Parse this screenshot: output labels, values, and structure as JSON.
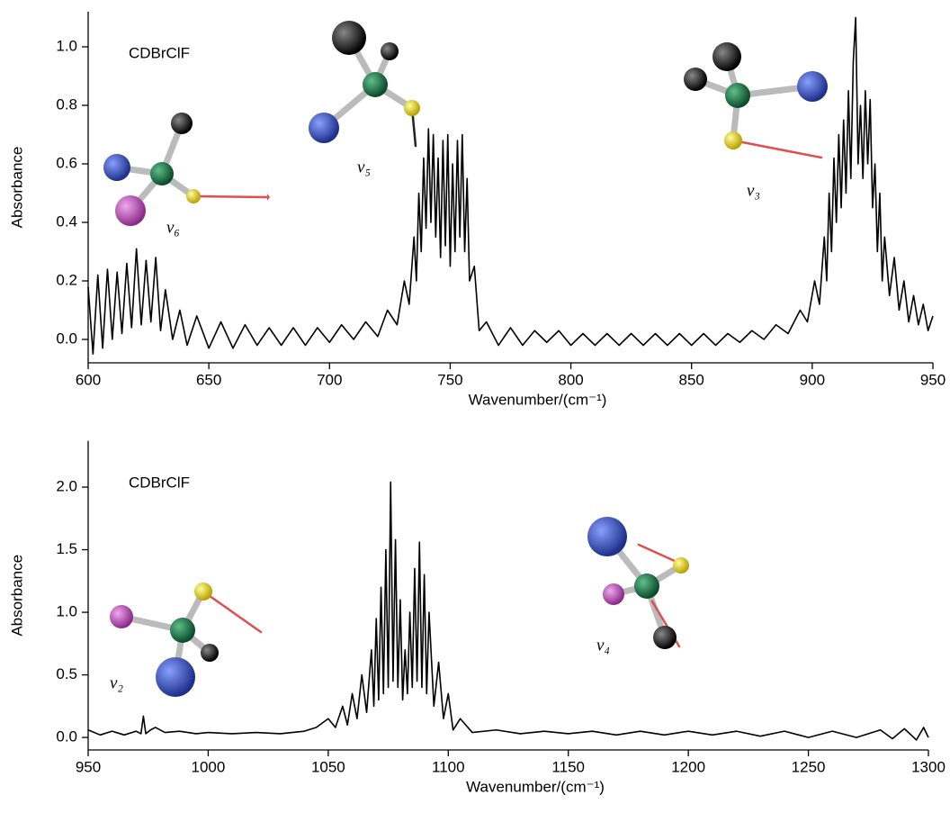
{
  "chart_data": [
    {
      "type": "line",
      "x_label": "Wavenumber/(cm⁻¹)",
      "y_label": "Absorbance",
      "annotations": [
        "CDBrClF",
        "ν₆",
        "ν₅",
        "ν₃"
      ],
      "xlim": [
        600,
        950
      ],
      "xticks": [
        600,
        650,
        700,
        750,
        800,
        850,
        900,
        950
      ],
      "ylim": [
        -0.08,
        1.12
      ],
      "yticks": [
        {
          "value": 0,
          "label": "0.0"
        },
        {
          "value": 0.2,
          "label": "0.2"
        },
        {
          "value": 0.4,
          "label": "0.4"
        },
        {
          "value": 0.6,
          "label": "0.6"
        },
        {
          "value": 0.8,
          "label": "0.8"
        },
        {
          "value": 1,
          "label": "1.0"
        }
      ],
      "color": "#000000",
      "x": [
        600,
        602,
        604,
        606,
        608,
        610,
        612,
        614,
        616,
        618,
        620,
        622,
        624,
        626,
        628,
        630,
        632,
        635,
        638,
        641,
        645,
        650,
        655,
        660,
        665,
        670,
        675,
        680,
        685,
        690,
        695,
        700,
        705,
        710,
        715,
        720,
        724,
        728,
        731,
        733,
        735,
        736,
        737,
        738,
        739,
        740,
        741,
        742,
        743,
        744,
        745,
        746,
        747,
        748,
        749,
        750,
        751,
        752,
        753,
        754,
        755,
        756,
        757,
        758,
        760,
        762,
        765,
        770,
        775,
        780,
        785,
        790,
        795,
        800,
        805,
        810,
        815,
        820,
        825,
        830,
        835,
        840,
        845,
        850,
        855,
        860,
        865,
        870,
        875,
        880,
        885,
        890,
        895,
        898,
        901,
        903,
        905,
        906,
        907,
        908,
        909,
        910,
        911,
        912,
        913,
        914,
        915,
        916,
        917,
        918,
        919,
        920,
        921,
        922,
        923,
        924,
        925,
        926,
        927,
        928,
        929,
        930,
        932,
        934,
        936,
        938,
        940,
        942,
        944,
        946,
        948,
        950
      ],
      "values": [
        0.18,
        -0.05,
        0.22,
        -0.03,
        0.24,
        0,
        0.23,
        0.02,
        0.26,
        0.04,
        0.31,
        0.05,
        0.27,
        0.06,
        0.28,
        0.03,
        0.17,
        0,
        0.1,
        -0.02,
        0.08,
        -0.03,
        0.06,
        -0.03,
        0.05,
        -0.02,
        0.04,
        -0.02,
        0.04,
        -0.02,
        0.04,
        -0.01,
        0.05,
        0,
        0.06,
        0.01,
        0.1,
        0.05,
        0.2,
        0.12,
        0.35,
        0.2,
        0.5,
        0.3,
        0.62,
        0.38,
        0.72,
        0.4,
        0.7,
        0.35,
        0.62,
        0.28,
        0.68,
        0.32,
        0.7,
        0.25,
        0.6,
        0.3,
        0.68,
        0.35,
        0.7,
        0.3,
        0.55,
        0.2,
        0.25,
        0.03,
        0.06,
        -0.02,
        0.04,
        -0.02,
        0.03,
        -0.01,
        0.03,
        -0.02,
        0.02,
        -0.02,
        0.02,
        -0.02,
        0.02,
        -0.02,
        0.02,
        -0.02,
        0.02,
        -0.02,
        0.02,
        -0.02,
        0.02,
        -0.01,
        0.03,
        0,
        0.05,
        0.02,
        0.1,
        0.06,
        0.2,
        0.12,
        0.35,
        0.2,
        0.5,
        0.3,
        0.62,
        0.4,
        0.7,
        0.45,
        0.75,
        0.5,
        0.85,
        0.55,
        0.95,
        1.1,
        0.6,
        0.8,
        0.55,
        0.85,
        0.6,
        0.82,
        0.45,
        0.6,
        0.3,
        0.5,
        0.2,
        0.35,
        0.15,
        0.28,
        0.1,
        0.2,
        0.06,
        0.15,
        0.05,
        0.12,
        0.03,
        0.08
      ]
    },
    {
      "type": "line",
      "x_label": "Wavenumber/(cm⁻¹)",
      "y_label": "Absorbance",
      "annotations": [
        "CDBrClF",
        "ν₂",
        "ν₄"
      ],
      "xlim": [
        950,
        1300
      ],
      "xticks": [
        950,
        1000,
        1050,
        1100,
        1150,
        1200,
        1250,
        1300
      ],
      "ylim": [
        -0.1,
        2.37
      ],
      "yticks": [
        {
          "value": 0,
          "label": "0.0"
        },
        {
          "value": 0.5,
          "label": "0.5"
        },
        {
          "value": 1,
          "label": "1.0"
        },
        {
          "value": 1.5,
          "label": "1.5"
        },
        {
          "value": 2,
          "label": "2.0"
        }
      ],
      "color": "#000000",
      "x": [
        950,
        955,
        960,
        965,
        970,
        972,
        973,
        974,
        976,
        978,
        982,
        988,
        995,
        1000,
        1010,
        1020,
        1030,
        1040,
        1045,
        1050,
        1053,
        1056,
        1058,
        1060,
        1062,
        1064,
        1066,
        1068,
        1069,
        1070,
        1071,
        1072,
        1073,
        1074,
        1075,
        1076,
        1077,
        1078,
        1079,
        1080,
        1081,
        1082,
        1083,
        1084,
        1085,
        1086,
        1087,
        1088,
        1089,
        1090,
        1091,
        1092,
        1094,
        1096,
        1098,
        1100,
        1102,
        1105,
        1110,
        1120,
        1130,
        1140,
        1150,
        1160,
        1170,
        1180,
        1190,
        1200,
        1210,
        1220,
        1230,
        1240,
        1250,
        1260,
        1270,
        1280,
        1285,
        1290,
        1295,
        1298,
        1300
      ],
      "values": [
        0.06,
        0.02,
        0.05,
        0.02,
        0.05,
        0.03,
        0.17,
        0.03,
        0.06,
        0.08,
        0.04,
        0.05,
        0.03,
        0.04,
        0.03,
        0.04,
        0.03,
        0.05,
        0.08,
        0.15,
        0.08,
        0.25,
        0.1,
        0.35,
        0.15,
        0.5,
        0.2,
        0.7,
        0.25,
        0.95,
        0.3,
        1.2,
        0.35,
        1.5,
        0.4,
        2.04,
        0.45,
        1.58,
        0.4,
        1.1,
        0.3,
        0.7,
        0.35,
        1,
        0.4,
        1.35,
        0.45,
        1.56,
        0.4,
        1.3,
        0.35,
        1,
        0.25,
        0.6,
        0.15,
        0.35,
        0.06,
        0.15,
        0.04,
        0.06,
        0.03,
        0.05,
        0.03,
        0.05,
        0.02,
        0.05,
        0.02,
        0.05,
        0.02,
        0.05,
        0.01,
        0.05,
        0,
        0.05,
        0,
        0.06,
        -0.01,
        0.07,
        -0.02,
        0.08,
        0
      ]
    }
  ]
}
